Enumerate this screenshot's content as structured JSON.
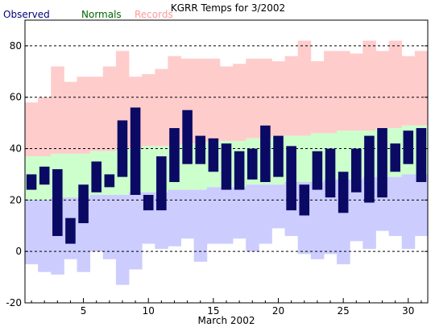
{
  "chart_data": {
    "type": "bar",
    "title": "KGRR Temps for 3/2002",
    "xlabel": "March 2002",
    "ylabel": "",
    "ylim": [
      -20,
      90
    ],
    "xlim": [
      0.5,
      31.5
    ],
    "y_ticks": [
      -20,
      0,
      20,
      40,
      60,
      80
    ],
    "x_ticks": [
      5,
      10,
      15,
      20,
      25,
      30
    ],
    "grid": "dashed horizontal at y ticks",
    "legend": [
      "Observed",
      "Normals",
      "Records"
    ],
    "legend_placement": "top-left",
    "colors": {
      "observed": "#0a0a64",
      "normals": "#ccffcc",
      "record_high_band": "#ffcccc",
      "record_low_band": "#ccccff",
      "observed_legend": "#000080",
      "normals_legend": "#006600",
      "records_legend": "#ff9999"
    },
    "days": [
      1,
      2,
      3,
      4,
      5,
      6,
      7,
      8,
      9,
      10,
      11,
      12,
      13,
      14,
      15,
      16,
      17,
      18,
      19,
      20,
      21,
      22,
      23,
      24,
      25,
      26,
      27,
      28,
      29,
      30,
      31
    ],
    "series": [
      {
        "name": "Observed",
        "high": [
          30,
          33,
          32,
          13,
          26,
          35,
          30,
          51,
          56,
          22,
          37,
          48,
          55,
          45,
          44,
          42,
          39,
          40,
          49,
          45,
          41,
          26,
          39,
          40,
          31,
          40,
          45,
          48,
          42,
          47,
          48
        ],
        "low": [
          24,
          26,
          6,
          3,
          11,
          23,
          25,
          29,
          22,
          16,
          16,
          27,
          34,
          34,
          31,
          24,
          24,
          28,
          27,
          29,
          16,
          14,
          24,
          21,
          15,
          23,
          19,
          21,
          31,
          34,
          27
        ]
      },
      {
        "name": "Normals",
        "high": [
          37,
          37,
          38,
          38,
          38,
          39,
          39,
          40,
          40,
          41,
          41,
          41,
          42,
          42,
          43,
          43,
          43,
          44,
          44,
          45,
          45,
          45,
          46,
          46,
          47,
          47,
          47,
          48,
          48,
          49,
          49
        ],
        "low": [
          20,
          20,
          21,
          21,
          21,
          22,
          22,
          22,
          23,
          23,
          23,
          24,
          24,
          24,
          25,
          25,
          25,
          26,
          26,
          26,
          27,
          27,
          27,
          28,
          28,
          28,
          29,
          29,
          29,
          30,
          30
        ]
      },
      {
        "name": "Records",
        "high": [
          58,
          60,
          72,
          66,
          68,
          68,
          72,
          78,
          68,
          69,
          71,
          76,
          75,
          75,
          75,
          72,
          73,
          75,
          75,
          74,
          76,
          82,
          74,
          78,
          78,
          77,
          82,
          78,
          82,
          76,
          78
        ],
        "low": [
          -5,
          -8,
          -9,
          -3,
          -8,
          0,
          -3,
          -13,
          -7,
          3,
          1,
          2,
          5,
          -4,
          3,
          3,
          5,
          0,
          3,
          9,
          6,
          -1,
          -3,
          -1,
          -5,
          4,
          1,
          8,
          6,
          1,
          6
        ]
      }
    ]
  }
}
